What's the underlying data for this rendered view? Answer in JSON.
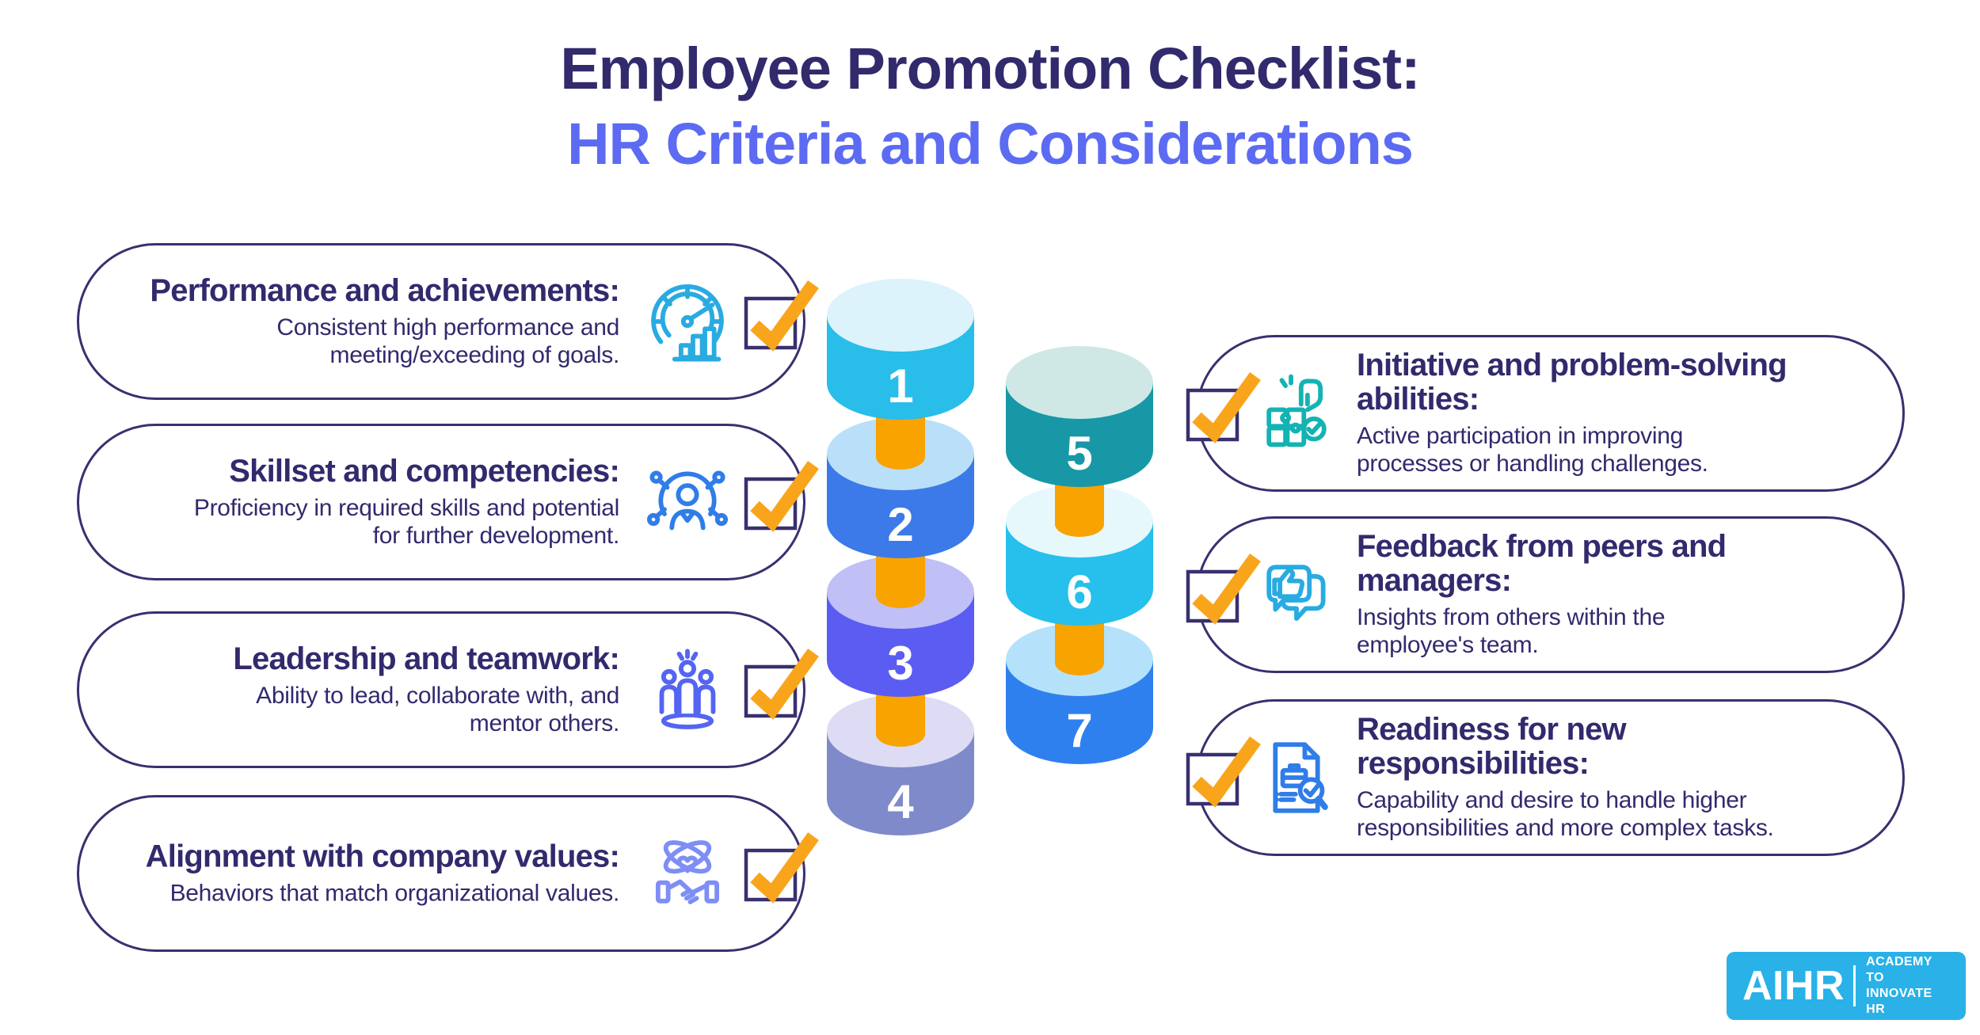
{
  "title": {
    "line1": "Employee Promotion Checklist:",
    "line2": "HR Criteria and Considerations"
  },
  "colors": {
    "navy": "#312a6d",
    "subtitle_blue": "#5c6bf2",
    "pill_border": "#38306f",
    "check_orange": "#f9a51c",
    "connector_orange": "#f8a300",
    "logo_blue": "#29b1e8"
  },
  "items": [
    {
      "number": "1",
      "heading": "Performance and achievements:",
      "description": "Consistent high performance and\nmeeting/exceeding of goals.",
      "icon": "speedometer-icon",
      "icon_color": "#29abe2",
      "cylinder": {
        "side": "#29bde9",
        "top": "#dcf3fc"
      }
    },
    {
      "number": "2",
      "heading": "Skillset and competencies:",
      "description": "Proficiency in required skills and potential\nfor further development.",
      "icon": "person-network-icon",
      "icon_color": "#2f7de8",
      "cylinder": {
        "side": "#3b7ae8",
        "top": "#b9e0f8"
      }
    },
    {
      "number": "3",
      "heading": "Leadership and teamwork:",
      "description": "Ability to lead, collaborate with, and\nmentor others.",
      "icon": "team-icon",
      "icon_color": "#5465f2",
      "cylinder": {
        "side": "#5a5cf2",
        "top": "#c0bff6"
      }
    },
    {
      "number": "4",
      "heading": "Alignment with company values:",
      "description": "Behaviors that match organizational values.",
      "icon": "handshake-icon",
      "icon_color": "#7e8ef5",
      "cylinder": {
        "side": "#7e8aca",
        "top": "#dddcf4"
      }
    },
    {
      "number": "5",
      "heading": "Initiative and problem-solving\nabilities:",
      "description": "Active participation in improving\nprocesses or handling challenges.",
      "icon": "puzzle-hand-icon",
      "icon_color": "#14b3b3",
      "cylinder": {
        "side": "#1898a6",
        "top": "#cfe8e5"
      }
    },
    {
      "number": "6",
      "heading": "Feedback from peers and\nmanagers:",
      "description": "Insights from others within the\nemployee's team.",
      "icon": "thumbs-up-chat-icon",
      "icon_color": "#29abe2",
      "cylinder": {
        "side": "#27bfec",
        "top": "#e7f8fd"
      }
    },
    {
      "number": "7",
      "heading": "Readiness for new\nresponsibilities:",
      "description": "Capability and desire to handle higher\nresponsibilities and more complex tasks.",
      "icon": "document-review-icon",
      "icon_color": "#2f7de8",
      "cylinder": {
        "side": "#2f80ef",
        "top": "#b5e2fa"
      }
    }
  ],
  "logo": {
    "brand": "AIHR",
    "tagline_line1": "ACADEMY TO",
    "tagline_line2": "INNOVATE HR"
  }
}
